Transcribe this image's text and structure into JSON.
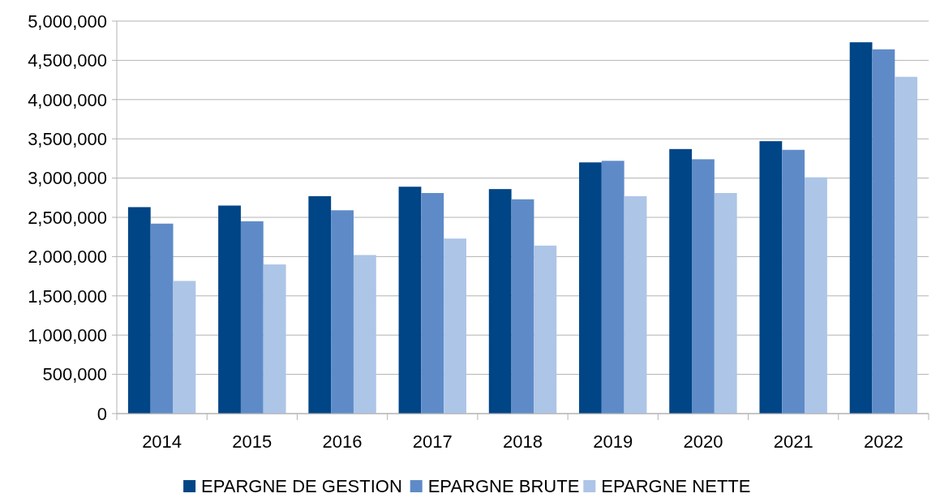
{
  "chart_data": {
    "type": "bar",
    "categories": [
      "2014",
      "2015",
      "2016",
      "2017",
      "2018",
      "2019",
      "2020",
      "2021",
      "2022"
    ],
    "series": [
      {
        "name": "EPARGNE DE GESTION",
        "color": "#004586",
        "values": [
          2630000,
          2650000,
          2770000,
          2890000,
          2860000,
          3200000,
          3370000,
          3470000,
          4730000
        ]
      },
      {
        "name": "EPARGNE BRUTE",
        "color": "#5e8bc8",
        "values": [
          2420000,
          2450000,
          2590000,
          2810000,
          2730000,
          3220000,
          3240000,
          3360000,
          4640000
        ]
      },
      {
        "name": "EPARGNE NETTE",
        "color": "#adc5e7",
        "values": [
          1690000,
          1900000,
          2020000,
          2230000,
          2140000,
          2770000,
          2810000,
          3010000,
          4290000
        ]
      }
    ],
    "ylim": [
      0,
      5000000
    ],
    "yticks": [
      {
        "value": 0,
        "label": "0"
      },
      {
        "value": 500000,
        "label": "500,000"
      },
      {
        "value": 1000000,
        "label": "1,000,000"
      },
      {
        "value": 1500000,
        "label": "1,500,000"
      },
      {
        "value": 2000000,
        "label": "2,000,000"
      },
      {
        "value": 2500000,
        "label": "2,500,000"
      },
      {
        "value": 3000000,
        "label": "3,000,000"
      },
      {
        "value": 3500000,
        "label": "3,500,000"
      },
      {
        "value": 4000000,
        "label": "4,000,000"
      },
      {
        "value": 4500000,
        "label": "4,500,000"
      },
      {
        "value": 5000000,
        "label": "5,000,000"
      }
    ],
    "grid": "y",
    "legend": "bottom"
  }
}
